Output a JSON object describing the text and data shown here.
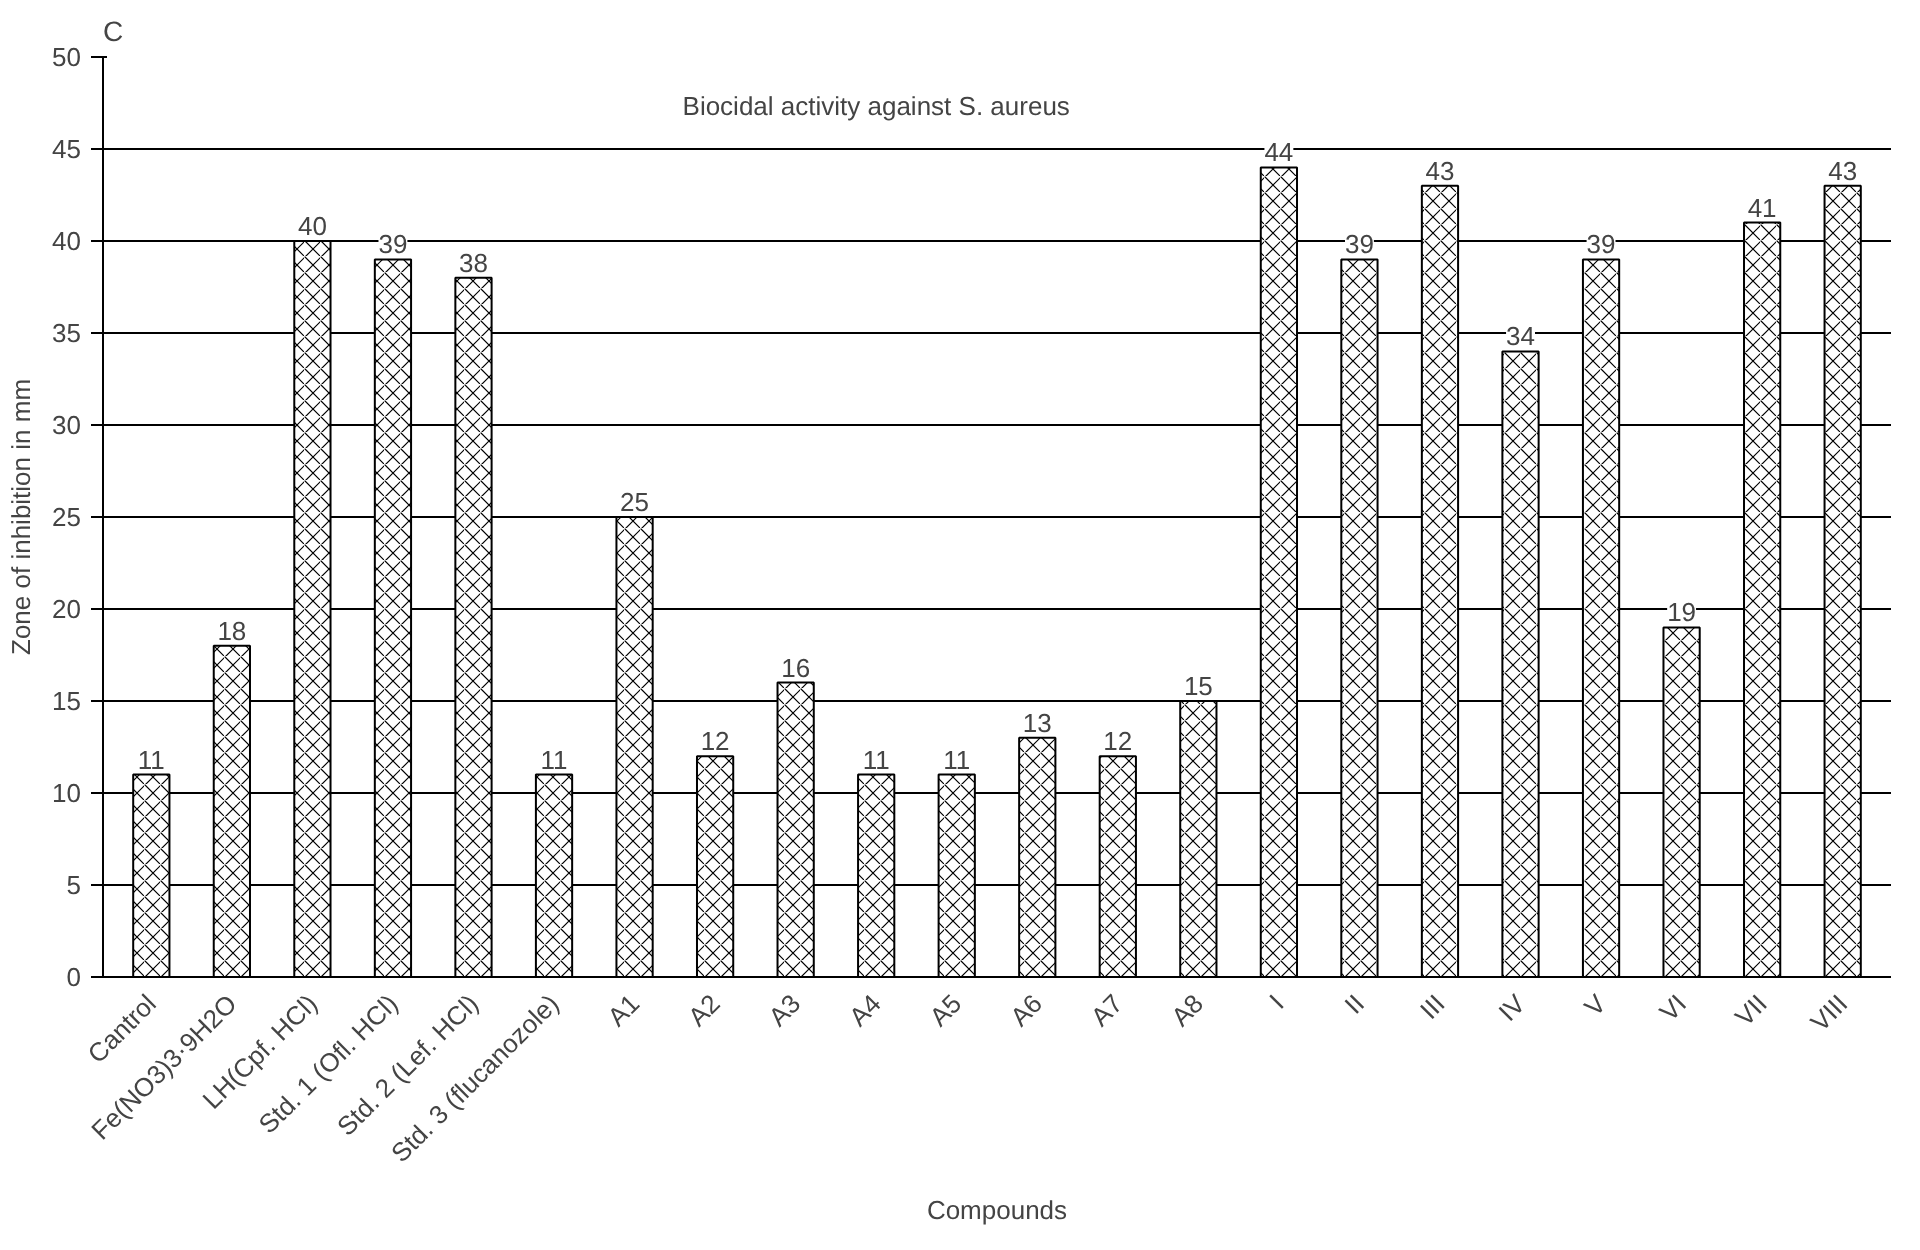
{
  "chart_data": {
    "type": "bar",
    "title": "Biocidal activity against S. aureus",
    "xlabel": "Compounds",
    "ylabel": "Zone of inhibition in mm",
    "annotations": [
      "C"
    ],
    "categories": [
      "Cantrol",
      "Fe(NO3)3·9H2O",
      "LH(Cpf. HCl)",
      "Std. 1 (Ofl. HCl)",
      "Std. 2 (Lef. HCl)",
      "Std. 3 (flucanozole)",
      "A1",
      "A2",
      "A3",
      "A4",
      "A5",
      "A6",
      "A7",
      "A8",
      "I",
      "II",
      "III",
      "IV",
      "V",
      "VI",
      "VII",
      "VIII"
    ],
    "values": [
      11,
      18,
      40,
      39,
      38,
      11,
      25,
      12,
      16,
      11,
      11,
      13,
      12,
      15,
      44,
      39,
      43,
      34,
      39,
      19,
      41,
      43
    ],
    "color": "#ffffff",
    "ylim": [
      0,
      50
    ],
    "yticks": [
      0,
      5,
      10,
      15,
      20,
      25,
      30,
      35,
      40,
      45,
      50
    ],
    "grid": "y",
    "data_labels": true
  }
}
